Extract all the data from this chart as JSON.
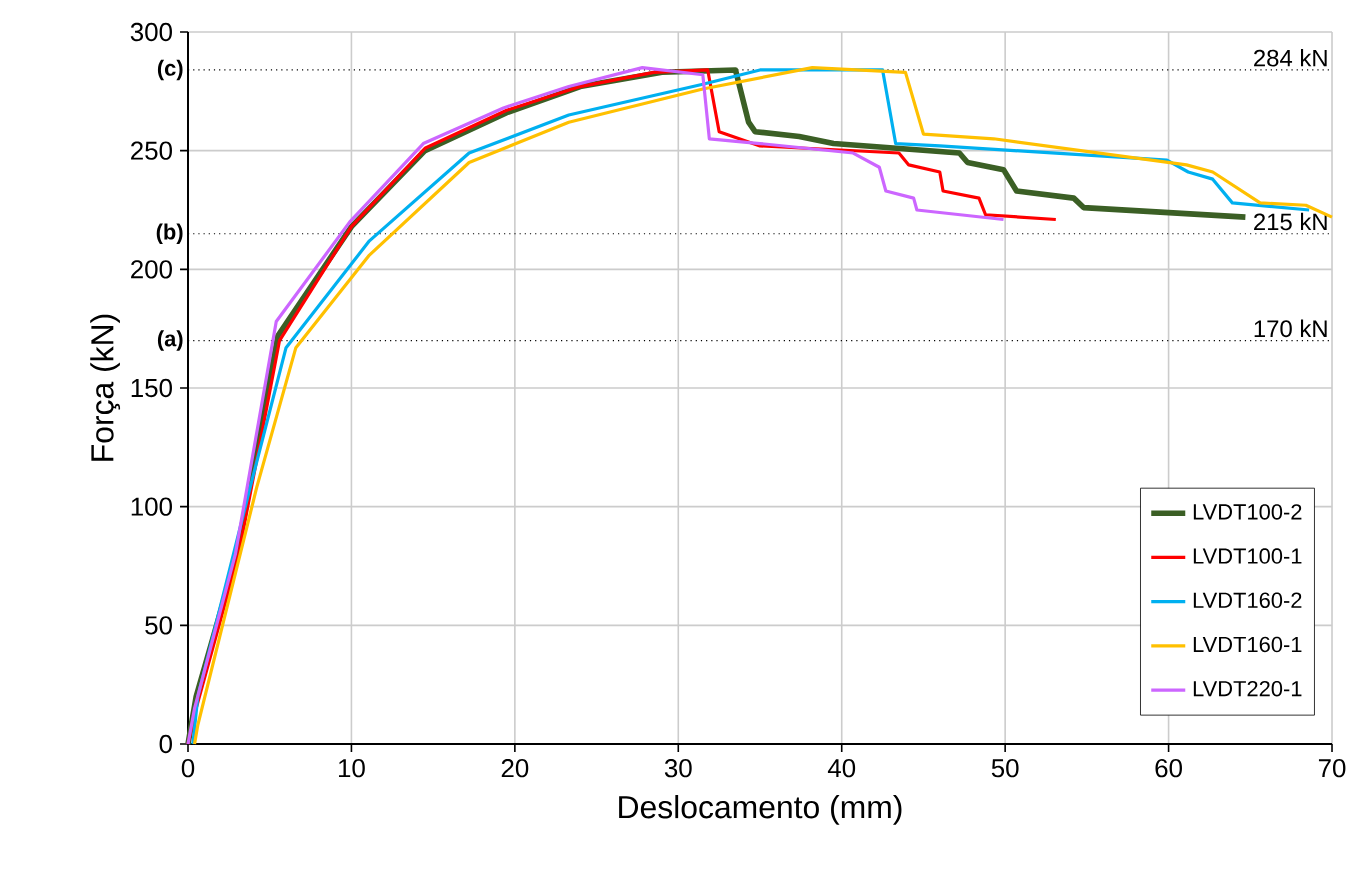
{
  "chart_data": {
    "type": "line",
    "xlabel": "Deslocamento (mm)",
    "ylabel": "Força (kN)",
    "xlim": [
      0,
      70
    ],
    "ylim": [
      0,
      300
    ],
    "xticks": [
      0,
      10,
      20,
      30,
      40,
      50,
      60,
      70
    ],
    "yticks": [
      0,
      50,
      100,
      150,
      200,
      250,
      300
    ],
    "grid": true,
    "legend": "bottom right",
    "marker": "none",
    "line_style": "solid",
    "series": [
      {
        "name": "LVDT100-2",
        "color": "#3b5f25",
        "x": [
          0,
          0.5,
          3,
          5.5,
          10,
          14.5,
          19.5,
          24,
          29,
          33.5,
          34.3,
          34.7,
          37.4,
          39.5,
          47.2,
          47.7,
          49.9,
          50.7,
          54.2,
          54.8,
          64.7
        ],
        "values": [
          0,
          20,
          80,
          172,
          218,
          250,
          266,
          277,
          283,
          284,
          262,
          258,
          256,
          253,
          249,
          245,
          242,
          233,
          230,
          226,
          222
        ]
      },
      {
        "name": "LVDT100-1",
        "color": "#ff0000",
        "x": [
          0,
          0.5,
          3.1,
          5.6,
          10,
          14.5,
          19.5,
          24,
          28.5,
          31.8,
          32.5,
          35,
          43.5,
          44.1,
          46,
          46.2,
          48.4,
          48.8,
          53.1
        ],
        "values": [
          0,
          15,
          80,
          170,
          218,
          251,
          267,
          277,
          283,
          284,
          258,
          252,
          249,
          244,
          241,
          233,
          230,
          223,
          221
        ]
      },
      {
        "name": "LVDT160-2",
        "color": "#00b0f0",
        "x": [
          0.3,
          0.6,
          3.8,
          6,
          11.1,
          17.2,
          23.3,
          31.5,
          35,
          42.5,
          43.3,
          46,
          59.9,
          61.2,
          62.7,
          63.9,
          68.6
        ],
        "values": [
          0,
          20,
          108,
          167,
          212,
          249,
          265,
          278,
          284,
          284,
          253,
          252,
          246,
          241,
          238,
          228,
          225
        ]
      },
      {
        "name": "LVDT160-1",
        "color": "#ffc000",
        "x": [
          0.4,
          0.6,
          4.2,
          6.6,
          11.1,
          17.2,
          23.3,
          31.5,
          38.2,
          43.9,
          45,
          49.3,
          61.1,
          62.7,
          65.6,
          68.4,
          70
        ],
        "values": [
          0,
          8,
          108,
          167,
          206,
          245,
          262,
          276,
          285,
          283,
          257,
          255,
          244,
          241,
          228,
          227,
          222
        ]
      },
      {
        "name": "LVDT220-1",
        "color": "#cc66ff",
        "x": [
          0,
          0.4,
          2.9,
          5.4,
          9.9,
          14.4,
          19.3,
          23.3,
          27.8,
          31.5,
          31.9,
          35,
          40.7,
          42.3,
          42.7,
          44.4,
          44.6,
          49.9
        ],
        "values": [
          0,
          15,
          80,
          178,
          220,
          253,
          268,
          277,
          285,
          282,
          255,
          253,
          249,
          243,
          233,
          230,
          225,
          221
        ]
      }
    ],
    "ref_lines": [
      {
        "axis": "y",
        "value": 284,
        "label": "284 kN",
        "color": "#000000",
        "line_style": "dotted"
      },
      {
        "axis": "y",
        "value": 215,
        "label": "215 kN",
        "color": "#000000",
        "line_style": "dotted"
      },
      {
        "axis": "y",
        "value": 170,
        "label": "170 kN",
        "color": "#000000",
        "line_style": "dotted"
      }
    ],
    "annotations": [
      "(c)",
      "(b)",
      "(a)"
    ]
  }
}
